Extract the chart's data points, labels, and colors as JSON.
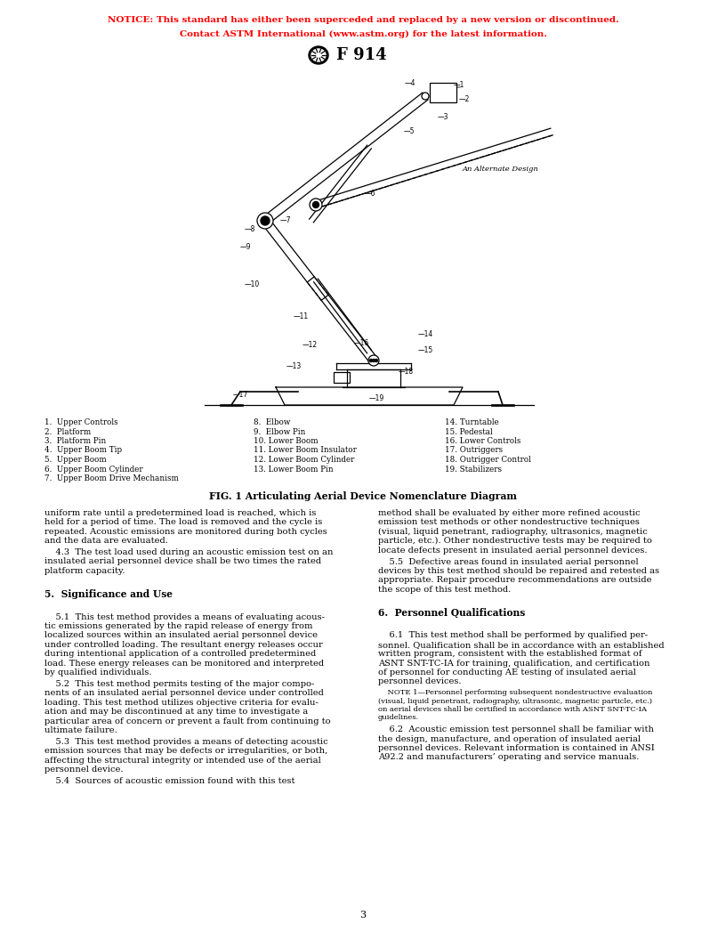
{
  "notice_line1": "NOTICE: This standard has either been superceded and replaced by a new version or discontinued.",
  "notice_line2": "Contact ASTM International (www.astm.org) for the latest information.",
  "notice_color": "#FF0000",
  "title": "F 914",
  "fig_caption": "FIG. 1 Articulating Aerial Device Nomenclature Diagram",
  "legend_col1": [
    "1.  Upper Controls",
    "2.  Platform",
    "3.  Platform Pin",
    "4.  Upper Boom Tip",
    "5.  Upper Boom",
    "6.  Upper Boom Cylinder",
    "7.  Upper Boom Drive Mechanism"
  ],
  "legend_col2": [
    "8.  Elbow",
    "9.  Elbow Pin",
    "10. Lower Boom",
    "11. Lower Boom Insulator",
    "12. Lower Boom Cylinder",
    "13. Lower Boom Pin"
  ],
  "legend_col3": [
    "14. Turntable",
    "15. Pedestal",
    "16. Lower Controls",
    "17. Outriggers",
    "18. Outrigger Control",
    "19. Stabilizers"
  ],
  "body_left": [
    {
      "bold": false,
      "small": false,
      "text": "uniform rate until a predetermined load is reached, which is\nheld for a period of time. The load is removed and the cycle is\nrepeated. Acoustic emissions are monitored during both cycles\nand the data are evaluated."
    },
    {
      "bold": false,
      "small": false,
      "text": "    4.3  The test load used during an acoustic emission test on an\ninsulated aerial personnel device shall be two times the rated\nplatform capacity."
    },
    {
      "bold": true,
      "small": false,
      "text": "\n5.  Significance and Use\n"
    },
    {
      "bold": false,
      "small": false,
      "text": "    5.1  This test method provides a means of evaluating acous-\ntic emissions generated by the rapid release of energy from\nlocalized sources within an insulated aerial personnel device\nunder controlled loading. The resultant energy releases occur\nduring intentional application of a controlled predetermined\nload. These energy releases can be monitored and interpreted\nby qualified individuals."
    },
    {
      "bold": false,
      "small": false,
      "text": "    5.2  This test method permits testing of the major compo-\nnents of an insulated aerial personnel device under controlled\nloading. This test method utilizes objective criteria for evalu-\nation and may be discontinued at any time to investigate a\nparticular area of concern or prevent a fault from continuing to\nultimate failure."
    },
    {
      "bold": false,
      "small": false,
      "text": "    5.3  This test method provides a means of detecting acoustic\nemission sources that may be defects or irregularities, or both,\naffecting the structural integrity or intended use of the aerial\npersonnel device."
    },
    {
      "bold": false,
      "small": false,
      "text": "    5.4  Sources of acoustic emission found with this test"
    }
  ],
  "body_right": [
    {
      "bold": false,
      "small": false,
      "text": "method shall be evaluated by either more refined acoustic\nemission test methods or other nondestructive techniques\n(visual, liquid penetrant, radiography, ultrasonics, magnetic\nparticle, etc.). Other nondestructive tests may be required to\nlocate defects present in insulated aerial personnel devices."
    },
    {
      "bold": false,
      "small": false,
      "text": "    5.5  Defective areas found in insulated aerial personnel\ndevices by this test method should be repaired and retested as\nappropriate. Repair procedure recommendations are outside\nthe scope of this test method."
    },
    {
      "bold": true,
      "small": false,
      "text": "\n6.  Personnel Qualifications\n"
    },
    {
      "bold": false,
      "small": false,
      "text": "    6.1  This test method shall be performed by qualified per-\nsonnel. Qualification shall be in accordance with an established\nwritten program, consistent with the established format of\nASNT SNT-TC-IA for training, qualification, and certification\nof personnel for conducting AE testing of insulated aerial\npersonnel devices."
    },
    {
      "bold": false,
      "small": true,
      "text": "    NOTE 1—Personnel performing subsequent nondestructive evaluation\n(visual, liquid penetrant, radiography, ultrasonic, magnetic particle, etc.)\non aerial devices shall be certified in accordance with ASNT SNT-TC-IA\nguidelines."
    },
    {
      "bold": false,
      "small": false,
      "text": "    6.2  Acoustic emission test personnel shall be familiar with\nthe design, manufacture, and operation of insulated aerial\npersonnel devices. Relevant information is contained in ANSI\nA92.2 and manufacturers’ operating and service manuals."
    }
  ],
  "page_number": "3",
  "bg_color": "#FFFFFF",
  "text_color": "#000000"
}
